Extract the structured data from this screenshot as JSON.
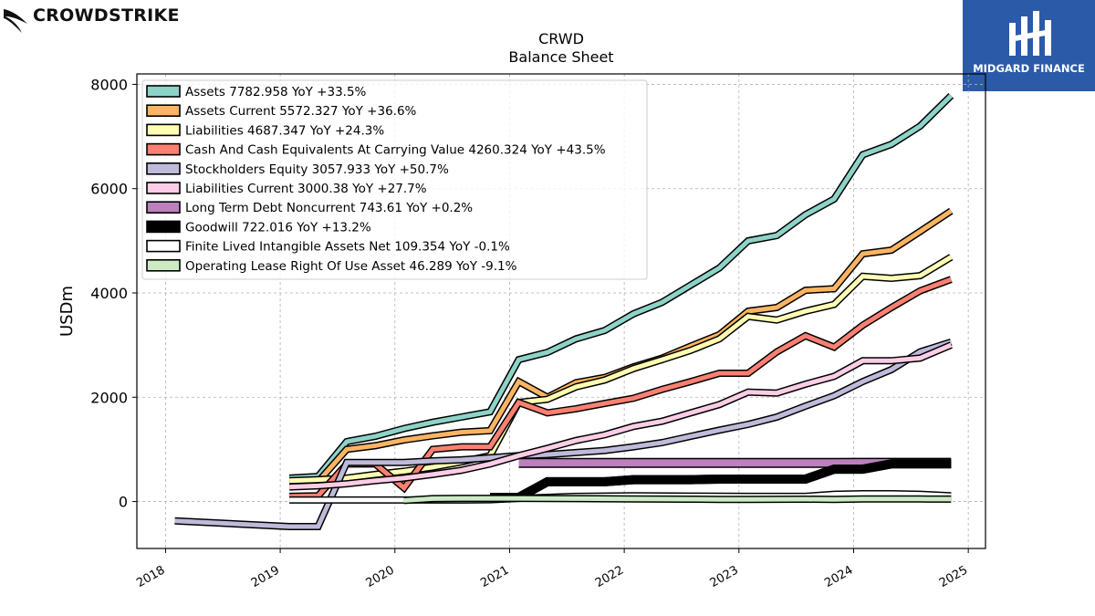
{
  "header": {
    "brand": "CROWDSTRIKE",
    "logo_text": "MIDGARD FINANCE"
  },
  "colors": {
    "logo_bg": "#2b5aa8"
  },
  "chart_data": {
    "type": "line",
    "title": "CRWD",
    "subtitle": "Balance  Sheet",
    "ylabel": "USDm",
    "xlabel": "",
    "xlim": [
      2017.75,
      2025.15
    ],
    "ylim": [
      -900,
      8200
    ],
    "y_ticks": [
      0,
      2000,
      4000,
      6000,
      8000
    ],
    "x_ticks": [
      "2018",
      "2019",
      "2020",
      "2021",
      "2022",
      "2023",
      "2024",
      "2025"
    ],
    "grid": true,
    "legend_position": "top-left",
    "series": [
      {
        "name": "Assets",
        "legend": "Assets  7782.958 YoY +33.5%",
        "color": "#8dd3c7",
        "x": [
          2019.08,
          2019.33,
          2019.58,
          2019.83,
          2020.08,
          2020.33,
          2020.58,
          2020.83,
          2021.08,
          2021.33,
          2021.58,
          2021.83,
          2022.08,
          2022.33,
          2022.58,
          2022.83,
          2023.08,
          2023.33,
          2023.58,
          2023.83,
          2024.08,
          2024.33,
          2024.58,
          2024.85
        ],
        "y": [
          450,
          480,
          1150,
          1250,
          1400,
          1520,
          1620,
          1720,
          2720,
          2860,
          3120,
          3280,
          3600,
          3820,
          4150,
          4480,
          5000,
          5100,
          5500,
          5800,
          6650,
          6850,
          7200,
          7783
        ]
      },
      {
        "name": "Assets Current",
        "legend": "Assets Current  5572.327 YoY +36.6%",
        "color": "#fdb462",
        "x": [
          2019.08,
          2019.33,
          2019.58,
          2019.83,
          2020.08,
          2020.33,
          2020.58,
          2020.83,
          2021.08,
          2021.33,
          2021.58,
          2021.83,
          2022.08,
          2022.33,
          2022.58,
          2022.83,
          2023.08,
          2023.33,
          2023.58,
          2023.83,
          2024.08,
          2024.33,
          2024.58,
          2024.85
        ],
        "y": [
          350,
          380,
          1000,
          1070,
          1180,
          1260,
          1330,
          1360,
          2300,
          2000,
          2280,
          2380,
          2580,
          2750,
          2980,
          3200,
          3650,
          3720,
          4050,
          4080,
          4750,
          4820,
          5180,
          5572
        ]
      },
      {
        "name": "Liabilities",
        "legend": "Liabilities  4687.347 YoY +24.3%",
        "color": "#ffffb3",
        "x": [
          2019.08,
          2019.33,
          2019.58,
          2019.83,
          2020.08,
          2020.33,
          2020.58,
          2020.83,
          2021.08,
          2021.33,
          2021.58,
          2021.83,
          2022.08,
          2022.33,
          2022.58,
          2022.83,
          2023.08,
          2023.33,
          2023.58,
          2023.83,
          2024.08,
          2024.33,
          2024.58,
          2024.85
        ],
        "y": [
          400,
          420,
          450,
          520,
          580,
          660,
          760,
          880,
          1900,
          1960,
          2200,
          2330,
          2550,
          2720,
          2900,
          3120,
          3550,
          3480,
          3650,
          3780,
          4320,
          4280,
          4330,
          4687
        ]
      },
      {
        "name": "Cash And Cash Equivalents At Carrying Value",
        "legend": "Cash And Cash Equivalents At Carrying Value  4260.324 YoY +43.5%",
        "color": "#fb8072",
        "x": [
          2019.08,
          2019.33,
          2019.58,
          2019.83,
          2020.08,
          2020.33,
          2020.58,
          2020.83,
          2021.08,
          2021.33,
          2021.58,
          2021.83,
          2022.08,
          2022.33,
          2022.58,
          2022.83,
          2023.08,
          2023.33,
          2023.58,
          2023.83,
          2024.08,
          2024.33,
          2024.58,
          2024.85
        ],
        "y": [
          100,
          110,
          720,
          720,
          260,
          1000,
          1050,
          1050,
          1900,
          1700,
          1780,
          1880,
          1980,
          2150,
          2300,
          2460,
          2460,
          2870,
          3180,
          2960,
          3380,
          3720,
          4040,
          4260
        ]
      },
      {
        "name": "Stockholders Equity",
        "legend": "Stockholders Equity  3057.933 YoY +50.7%",
        "color": "#bebada",
        "x": [
          2018.08,
          2019.08,
          2019.33,
          2019.58,
          2019.83,
          2020.08,
          2020.33,
          2020.58,
          2020.83,
          2021.08,
          2021.33,
          2021.58,
          2021.83,
          2022.08,
          2022.33,
          2022.58,
          2022.83,
          2023.08,
          2023.33,
          2023.58,
          2023.83,
          2024.08,
          2024.33,
          2024.58,
          2024.85
        ],
        "y": [
          -370,
          -480,
          -480,
          750,
          750,
          750,
          780,
          800,
          840,
          880,
          900,
          940,
          980,
          1050,
          1130,
          1250,
          1370,
          1480,
          1620,
          1830,
          2030,
          2300,
          2530,
          2870,
          3058
        ]
      },
      {
        "name": "Liabilities Current",
        "legend": "Liabilities Current  3000.38 YoY +27.7%",
        "color": "#fccde5",
        "x": [
          2019.08,
          2019.33,
          2019.58,
          2019.83,
          2020.08,
          2020.33,
          2020.58,
          2020.83,
          2021.08,
          2021.33,
          2021.58,
          2021.83,
          2022.08,
          2022.33,
          2022.58,
          2022.83,
          2023.08,
          2023.33,
          2023.58,
          2023.83,
          2024.08,
          2024.33,
          2024.58,
          2024.85
        ],
        "y": [
          280,
          300,
          340,
          400,
          450,
          520,
          600,
          720,
          880,
          1020,
          1170,
          1280,
          1440,
          1540,
          1700,
          1860,
          2100,
          2080,
          2250,
          2400,
          2700,
          2700,
          2750,
          3000
        ]
      },
      {
        "name": "Long Term Debt Noncurrent",
        "legend": "Long Term Debt Noncurrent  743.61 YoY +0.2%",
        "color": "#bc80bd",
        "x": [
          2021.08,
          2021.33,
          2021.58,
          2021.83,
          2022.08,
          2022.33,
          2022.58,
          2022.83,
          2023.08,
          2023.33,
          2023.58,
          2023.83,
          2024.08,
          2024.33,
          2024.58,
          2024.85
        ],
        "y": [
          740,
          740,
          740,
          740,
          740,
          741,
          741,
          741,
          742,
          742,
          742,
          742,
          743,
          743,
          743,
          744
        ]
      },
      {
        "name": "Goodwill",
        "legend": "Goodwill  722.016 YoY +13.2%",
        "color": "#000000",
        "x": [
          2020.83,
          2021.08,
          2021.33,
          2021.58,
          2021.83,
          2022.08,
          2022.33,
          2022.58,
          2022.83,
          2023.08,
          2023.33,
          2023.58,
          2023.83,
          2024.08,
          2024.33,
          2024.58,
          2024.85
        ],
        "y": [
          80,
          80,
          380,
          380,
          380,
          420,
          420,
          420,
          430,
          430,
          430,
          430,
          620,
          620,
          722,
          722,
          722
        ]
      },
      {
        "name": "Finite Lived Intangible Assets Net",
        "legend": "Finite Lived Intangible Assets Net  109.354 YoY -0.1%",
        "color": "#ffffff",
        "x": [
          2019.08,
          2019.58,
          2020.08,
          2020.58,
          2020.83,
          2021.08,
          2021.58,
          2022.08,
          2022.58,
          2023.08,
          2023.58,
          2023.83,
          2024.08,
          2024.33,
          2024.58,
          2024.85
        ],
        "y": [
          30,
          30,
          30,
          30,
          35,
          60,
          100,
          110,
          105,
          100,
          100,
          140,
          150,
          150,
          140,
          109
        ]
      },
      {
        "name": "Operating Lease Right Of Use Asset",
        "legend": "Operating Lease Right Of Use Asset  46.289 YoY -9.1%",
        "color": "#ccebc5",
        "x": [
          2020.08,
          2020.33,
          2020.58,
          2020.83,
          2021.08,
          2021.58,
          2022.08,
          2022.58,
          2022.83,
          2023.08,
          2023.58,
          2023.83,
          2024.08,
          2024.33,
          2024.58,
          2024.85
        ],
        "y": [
          20,
          55,
          60,
          60,
          60,
          55,
          50,
          45,
          40,
          40,
          45,
          40,
          50,
          50,
          48,
          46
        ]
      }
    ]
  }
}
